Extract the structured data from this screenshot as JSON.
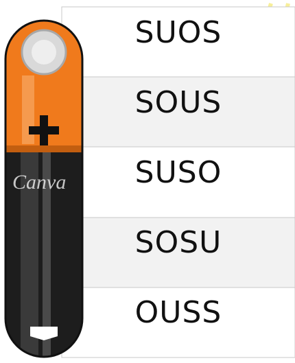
{
  "rows": [
    "SUOS",
    "SOUS",
    "SUSO",
    "SOSU",
    "OUSS"
  ],
  "watermark": "Canva"
}
